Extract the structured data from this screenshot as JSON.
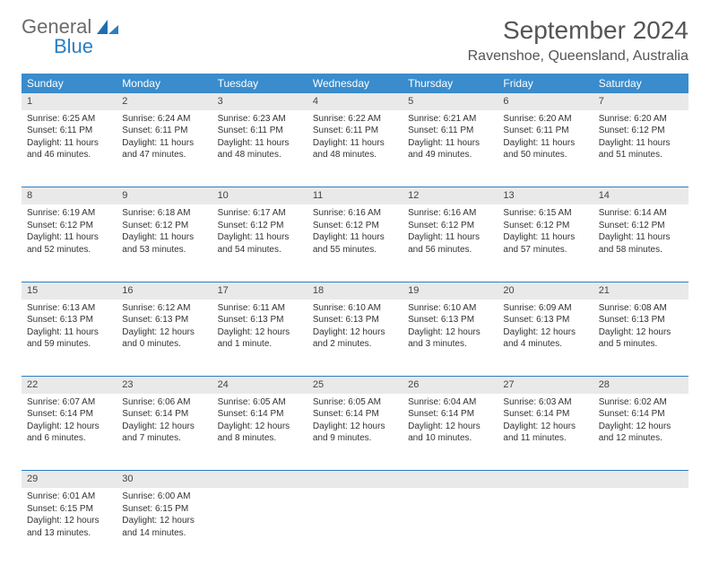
{
  "brand": {
    "general": "General",
    "blue": "Blue"
  },
  "title": "September 2024",
  "location": "Ravenshoe, Queensland, Australia",
  "colors": {
    "header_bg": "#3a8ccc",
    "divider": "#2b7ec2",
    "daynum_bg": "#e9e9e9",
    "text": "#333333",
    "title_text": "#555555"
  },
  "weekdays": [
    "Sunday",
    "Monday",
    "Tuesday",
    "Wednesday",
    "Thursday",
    "Friday",
    "Saturday"
  ],
  "weeks": [
    [
      {
        "n": "1",
        "sr": "Sunrise: 6:25 AM",
        "ss": "Sunset: 6:11 PM",
        "d1": "Daylight: 11 hours",
        "d2": "and 46 minutes."
      },
      {
        "n": "2",
        "sr": "Sunrise: 6:24 AM",
        "ss": "Sunset: 6:11 PM",
        "d1": "Daylight: 11 hours",
        "d2": "and 47 minutes."
      },
      {
        "n": "3",
        "sr": "Sunrise: 6:23 AM",
        "ss": "Sunset: 6:11 PM",
        "d1": "Daylight: 11 hours",
        "d2": "and 48 minutes."
      },
      {
        "n": "4",
        "sr": "Sunrise: 6:22 AM",
        "ss": "Sunset: 6:11 PM",
        "d1": "Daylight: 11 hours",
        "d2": "and 48 minutes."
      },
      {
        "n": "5",
        "sr": "Sunrise: 6:21 AM",
        "ss": "Sunset: 6:11 PM",
        "d1": "Daylight: 11 hours",
        "d2": "and 49 minutes."
      },
      {
        "n": "6",
        "sr": "Sunrise: 6:20 AM",
        "ss": "Sunset: 6:11 PM",
        "d1": "Daylight: 11 hours",
        "d2": "and 50 minutes."
      },
      {
        "n": "7",
        "sr": "Sunrise: 6:20 AM",
        "ss": "Sunset: 6:12 PM",
        "d1": "Daylight: 11 hours",
        "d2": "and 51 minutes."
      }
    ],
    [
      {
        "n": "8",
        "sr": "Sunrise: 6:19 AM",
        "ss": "Sunset: 6:12 PM",
        "d1": "Daylight: 11 hours",
        "d2": "and 52 minutes."
      },
      {
        "n": "9",
        "sr": "Sunrise: 6:18 AM",
        "ss": "Sunset: 6:12 PM",
        "d1": "Daylight: 11 hours",
        "d2": "and 53 minutes."
      },
      {
        "n": "10",
        "sr": "Sunrise: 6:17 AM",
        "ss": "Sunset: 6:12 PM",
        "d1": "Daylight: 11 hours",
        "d2": "and 54 minutes."
      },
      {
        "n": "11",
        "sr": "Sunrise: 6:16 AM",
        "ss": "Sunset: 6:12 PM",
        "d1": "Daylight: 11 hours",
        "d2": "and 55 minutes."
      },
      {
        "n": "12",
        "sr": "Sunrise: 6:16 AM",
        "ss": "Sunset: 6:12 PM",
        "d1": "Daylight: 11 hours",
        "d2": "and 56 minutes."
      },
      {
        "n": "13",
        "sr": "Sunrise: 6:15 AM",
        "ss": "Sunset: 6:12 PM",
        "d1": "Daylight: 11 hours",
        "d2": "and 57 minutes."
      },
      {
        "n": "14",
        "sr": "Sunrise: 6:14 AM",
        "ss": "Sunset: 6:12 PM",
        "d1": "Daylight: 11 hours",
        "d2": "and 58 minutes."
      }
    ],
    [
      {
        "n": "15",
        "sr": "Sunrise: 6:13 AM",
        "ss": "Sunset: 6:13 PM",
        "d1": "Daylight: 11 hours",
        "d2": "and 59 minutes."
      },
      {
        "n": "16",
        "sr": "Sunrise: 6:12 AM",
        "ss": "Sunset: 6:13 PM",
        "d1": "Daylight: 12 hours",
        "d2": "and 0 minutes."
      },
      {
        "n": "17",
        "sr": "Sunrise: 6:11 AM",
        "ss": "Sunset: 6:13 PM",
        "d1": "Daylight: 12 hours",
        "d2": "and 1 minute."
      },
      {
        "n": "18",
        "sr": "Sunrise: 6:10 AM",
        "ss": "Sunset: 6:13 PM",
        "d1": "Daylight: 12 hours",
        "d2": "and 2 minutes."
      },
      {
        "n": "19",
        "sr": "Sunrise: 6:10 AM",
        "ss": "Sunset: 6:13 PM",
        "d1": "Daylight: 12 hours",
        "d2": "and 3 minutes."
      },
      {
        "n": "20",
        "sr": "Sunrise: 6:09 AM",
        "ss": "Sunset: 6:13 PM",
        "d1": "Daylight: 12 hours",
        "d2": "and 4 minutes."
      },
      {
        "n": "21",
        "sr": "Sunrise: 6:08 AM",
        "ss": "Sunset: 6:13 PM",
        "d1": "Daylight: 12 hours",
        "d2": "and 5 minutes."
      }
    ],
    [
      {
        "n": "22",
        "sr": "Sunrise: 6:07 AM",
        "ss": "Sunset: 6:14 PM",
        "d1": "Daylight: 12 hours",
        "d2": "and 6 minutes."
      },
      {
        "n": "23",
        "sr": "Sunrise: 6:06 AM",
        "ss": "Sunset: 6:14 PM",
        "d1": "Daylight: 12 hours",
        "d2": "and 7 minutes."
      },
      {
        "n": "24",
        "sr": "Sunrise: 6:05 AM",
        "ss": "Sunset: 6:14 PM",
        "d1": "Daylight: 12 hours",
        "d2": "and 8 minutes."
      },
      {
        "n": "25",
        "sr": "Sunrise: 6:05 AM",
        "ss": "Sunset: 6:14 PM",
        "d1": "Daylight: 12 hours",
        "d2": "and 9 minutes."
      },
      {
        "n": "26",
        "sr": "Sunrise: 6:04 AM",
        "ss": "Sunset: 6:14 PM",
        "d1": "Daylight: 12 hours",
        "d2": "and 10 minutes."
      },
      {
        "n": "27",
        "sr": "Sunrise: 6:03 AM",
        "ss": "Sunset: 6:14 PM",
        "d1": "Daylight: 12 hours",
        "d2": "and 11 minutes."
      },
      {
        "n": "28",
        "sr": "Sunrise: 6:02 AM",
        "ss": "Sunset: 6:14 PM",
        "d1": "Daylight: 12 hours",
        "d2": "and 12 minutes."
      }
    ],
    [
      {
        "n": "29",
        "sr": "Sunrise: 6:01 AM",
        "ss": "Sunset: 6:15 PM",
        "d1": "Daylight: 12 hours",
        "d2": "and 13 minutes."
      },
      {
        "n": "30",
        "sr": "Sunrise: 6:00 AM",
        "ss": "Sunset: 6:15 PM",
        "d1": "Daylight: 12 hours",
        "d2": "and 14 minutes."
      },
      null,
      null,
      null,
      null,
      null
    ]
  ]
}
